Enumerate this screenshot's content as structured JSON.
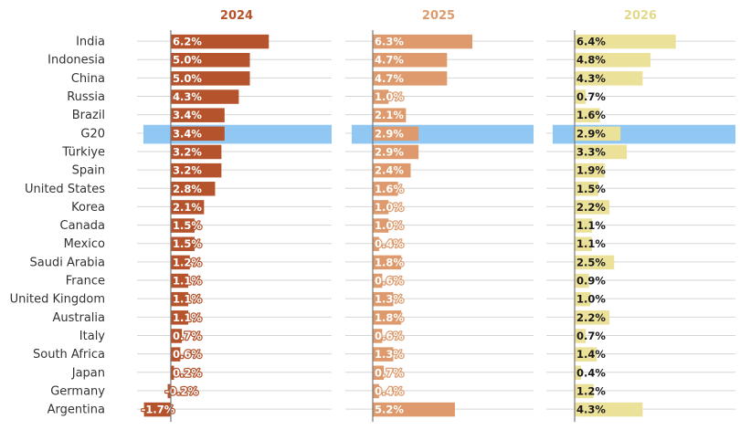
{
  "chart_data": {
    "type": "bar",
    "orientation": "horizontal",
    "categories": [
      "India",
      "Indonesia",
      "China",
      "Russia",
      "Brazil",
      "G20",
      "Türkiye",
      "Spain",
      "United States",
      "Korea",
      "Canada",
      "Mexico",
      "Saudi Arabia",
      "France",
      "United Kingdom",
      "Australia",
      "Italy",
      "South Africa",
      "Japan",
      "Germany",
      "Argentina"
    ],
    "highlight_category": "G20",
    "highlight_color": "#90c7f3",
    "grid": true,
    "series": [
      {
        "name": "2024",
        "color": "#b5532c",
        "title_color": "#b5532c",
        "values": [
          6.2,
          5.0,
          5.0,
          4.3,
          3.4,
          3.4,
          3.2,
          3.2,
          2.8,
          2.1,
          1.5,
          1.5,
          1.2,
          1.1,
          1.1,
          1.1,
          0.7,
          0.6,
          0.2,
          -0.2,
          -1.7
        ],
        "labels": [
          "6.2%",
          "5.0%",
          "5.0%",
          "4.3%",
          "3.4%",
          "3.4%",
          "3.2%",
          "3.2%",
          "2.8%",
          "2.1%",
          "1.5%",
          "1.5%",
          "1.2%",
          "1.1%",
          "1.1%",
          "1.1%",
          "0.7%",
          "0.6%",
          "0.2%",
          "-0.2%",
          "-1.7%"
        ]
      },
      {
        "name": "2025",
        "color": "#de9a6c",
        "title_color": "#de9a6c",
        "values": [
          6.3,
          4.7,
          4.7,
          1.0,
          2.1,
          2.9,
          2.9,
          2.4,
          1.6,
          1.0,
          1.0,
          0.4,
          1.8,
          0.6,
          1.3,
          1.8,
          0.6,
          1.3,
          0.7,
          0.4,
          5.2
        ],
        "labels": [
          "6.3%",
          "4.7%",
          "4.7%",
          "1.0%",
          "2.1%",
          "2.9%",
          "2.9%",
          "2.4%",
          "1.6%",
          "1.0%",
          "1.0%",
          "0.4%",
          "1.8%",
          "0.6%",
          "1.3%",
          "1.8%",
          "0.6%",
          "1.3%",
          "0.7%",
          "0.4%",
          "5.2%"
        ]
      },
      {
        "name": "2026",
        "color": "#ebe199",
        "title_color": "#e3d98a",
        "values": [
          6.4,
          4.8,
          4.3,
          0.7,
          1.6,
          2.9,
          3.3,
          1.9,
          1.5,
          2.2,
          1.1,
          1.1,
          2.5,
          0.9,
          1.0,
          2.2,
          0.7,
          1.4,
          0.4,
          1.2,
          4.3
        ],
        "labels": [
          "6.4%",
          "4.8%",
          "4.3%",
          "0.7%",
          "1.6%",
          "2.9%",
          "3.3%",
          "1.9%",
          "1.5%",
          "2.2%",
          "1.1%",
          "1.1%",
          "2.5%",
          "0.9%",
          "1.0%",
          "2.2%",
          "0.7%",
          "1.4%",
          "0.4%",
          "1.2%",
          "4.3%"
        ]
      }
    ]
  }
}
